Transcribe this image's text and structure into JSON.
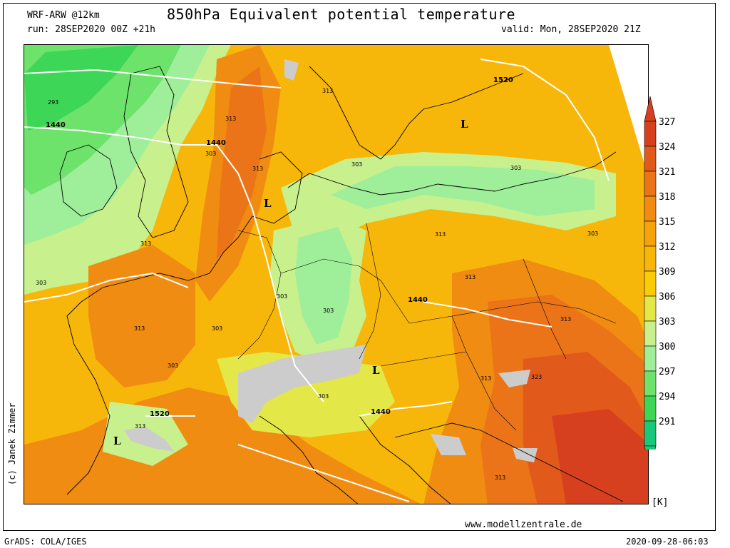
{
  "header": {
    "model": "WRF-ARW @12km",
    "run": "run: 28SEP2020 00Z +21h",
    "title": "850hPa Equivalent potential temperature",
    "valid": "valid: Mon, 28SEP2020 21Z"
  },
  "footer": {
    "credit": "(c) Janek Zimmer",
    "website": "www.modellzentrale.de",
    "grads": "GrADS: COLA/IGES",
    "timestamp": "2020-09-28-06:03"
  },
  "legend": {
    "unit": "[K]",
    "ticks": [
      "327",
      "324",
      "321",
      "318",
      "315",
      "312",
      "309",
      "306",
      "303",
      "300",
      "297",
      "294",
      "291"
    ],
    "colors": [
      "#d7401f",
      "#e25a1b",
      "#ea7417",
      "#f08c12",
      "#f5a20c",
      "#f7b60a",
      "#f9cc07",
      "#e3e748",
      "#c8f08c",
      "#9eee9a",
      "#6ee36c",
      "#3dd657",
      "#1ac87a"
    ]
  },
  "map_labels": {
    "geopotential": [
      {
        "text": "1440"
      },
      {
        "text": "1440"
      },
      {
        "text": "1520"
      },
      {
        "text": "1440"
      },
      {
        "text": "1440"
      },
      {
        "text": "1520"
      }
    ],
    "theta_e": [
      {
        "text": "293"
      },
      {
        "text": "313"
      },
      {
        "text": "313"
      },
      {
        "text": "303"
      },
      {
        "text": "313"
      },
      {
        "text": "303"
      },
      {
        "text": "303"
      },
      {
        "text": "303"
      },
      {
        "text": "313"
      },
      {
        "text": "303"
      },
      {
        "text": "313"
      },
      {
        "text": "313"
      },
      {
        "text": "303"
      },
      {
        "text": "303"
      },
      {
        "text": "313"
      },
      {
        "text": "303"
      },
      {
        "text": "303"
      },
      {
        "text": "313"
      },
      {
        "text": "313"
      },
      {
        "text": "323"
      },
      {
        "text": "313"
      },
      {
        "text": "303"
      },
      {
        "text": "313"
      }
    ],
    "lows": [
      {
        "text": "L"
      },
      {
        "text": "L"
      },
      {
        "text": "L"
      },
      {
        "text": "L"
      }
    ]
  }
}
